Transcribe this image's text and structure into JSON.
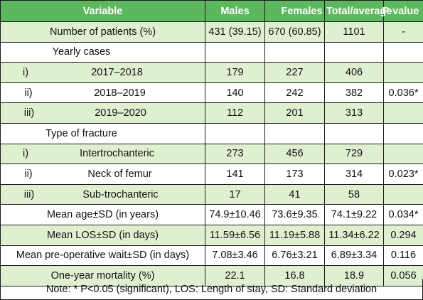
{
  "headers": [
    "Variable",
    "Males",
    "Females",
    "Total/average",
    "P-value"
  ],
  "rows": [
    {
      "type": "plain",
      "label": "Number of patients (%)",
      "cells": [
        "431 (39.15)",
        "670 (60.85)",
        "1101",
        "-"
      ]
    },
    {
      "type": "section",
      "label": "Yearly cases",
      "cells": [
        "",
        "",
        "",
        ""
      ]
    },
    {
      "type": "sub",
      "num": "i)",
      "label": "2017–2018",
      "cells": [
        "179",
        "227",
        "406",
        ""
      ]
    },
    {
      "type": "sub",
      "num": "ii)",
      "label": "2018–2019",
      "cells": [
        "140",
        "242",
        "382",
        "0.036*"
      ]
    },
    {
      "type": "sub",
      "num": "iii)",
      "label": "2019–2020",
      "cells": [
        "112",
        "201",
        "313",
        ""
      ]
    },
    {
      "type": "section",
      "label": "Type of fracture",
      "cells": [
        "",
        "",
        "",
        ""
      ]
    },
    {
      "type": "sub",
      "num": "i)",
      "label": "Intertrochanteric",
      "cells": [
        "273",
        "456",
        "729",
        ""
      ]
    },
    {
      "type": "sub",
      "num": "ii)",
      "label": "Neck of femur",
      "cells": [
        "141",
        "173",
        "314",
        "0.023*"
      ]
    },
    {
      "type": "sub",
      "num": "iii)",
      "label": "Sub-trochanteric",
      "cells": [
        "17",
        "41",
        "58",
        ""
      ]
    },
    {
      "type": "plain",
      "label": "Mean age±SD (in years)",
      "cells": [
        "74.9±10.46",
        "73.6±9.35",
        "74.1±9.22",
        "0.034*"
      ]
    },
    {
      "type": "plain",
      "label": "Mean LOS±SD (in days)",
      "cells": [
        "11.59±6.56",
        "11.19±5.88",
        "11.34±6.22",
        "0.294"
      ]
    },
    {
      "type": "plain",
      "label": "Mean pre-operative wait±SD (in days)",
      "cells": [
        "7.08±3.46",
        "6.76±3.21",
        "6.89±3.34",
        "0.116"
      ]
    },
    {
      "type": "plain",
      "label": "One-year mortality (%)",
      "cells": [
        "22.1",
        "16.8",
        "18.9",
        "0.056"
      ]
    }
  ],
  "note": "Note: * P<0.05 (significant), LOS: Length of stay, SD: Standard deviation",
  "colors": {
    "header_bg": "#5cb85c",
    "shade_bg": "#dff0d0",
    "border": "#1a1a1a"
  }
}
